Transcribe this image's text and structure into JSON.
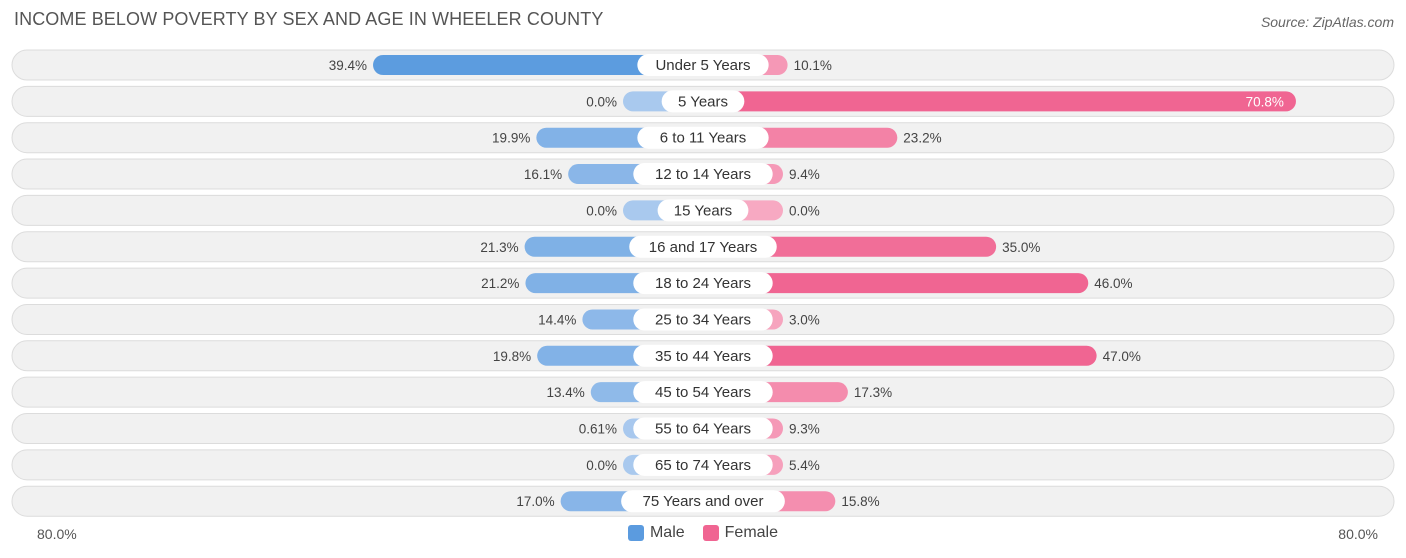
{
  "header": {
    "title": "INCOME BELOW POVERTY BY SEX AND AGE IN WHEELER COUNTY",
    "source": "Source: ZipAtlas.com"
  },
  "colors": {
    "male_dark": "#5b9bdf",
    "male_light": "#a9c9ee",
    "female_dark": "#f06592",
    "female_light": "#f7a9c2",
    "row_bg": "#f1f1f1",
    "row_border": "#dcdcdc"
  },
  "chart_data": {
    "type": "bar",
    "orientation": "horizontal-diverging",
    "title": "INCOME BELOW POVERTY BY SEX AND AGE IN WHEELER COUNTY",
    "categories": [
      "Under 5 Years",
      "5 Years",
      "6 to 11 Years",
      "12 to 14 Years",
      "15 Years",
      "16 and 17 Years",
      "18 to 24 Years",
      "25 to 34 Years",
      "35 to 44 Years",
      "45 to 54 Years",
      "55 to 64 Years",
      "65 to 74 Years",
      "75 Years and over"
    ],
    "series": [
      {
        "name": "Male",
        "values": [
          39.4,
          0.0,
          19.9,
          16.1,
          0.0,
          21.3,
          21.2,
          14.4,
          19.8,
          13.4,
          0.61,
          0.0,
          17.0
        ],
        "labels": [
          "39.4%",
          "0.0%",
          "19.9%",
          "16.1%",
          "0.0%",
          "21.3%",
          "21.2%",
          "14.4%",
          "19.8%",
          "13.4%",
          "0.61%",
          "0.0%",
          "17.0%"
        ]
      },
      {
        "name": "Female",
        "values": [
          10.1,
          70.8,
          23.2,
          9.4,
          0.0,
          35.0,
          46.0,
          3.0,
          47.0,
          17.3,
          9.3,
          5.4,
          15.8
        ],
        "labels": [
          "10.1%",
          "70.8%",
          "23.2%",
          "9.4%",
          "0.0%",
          "35.0%",
          "46.0%",
          "3.0%",
          "47.0%",
          "17.3%",
          "9.3%",
          "5.4%",
          "15.8%"
        ]
      }
    ],
    "xlim": [
      -80,
      80
    ],
    "axis_left_label": "80.0%",
    "axis_right_label": "80.0%",
    "legend_position": "bottom-center"
  },
  "legend": {
    "male": "Male",
    "female": "Female"
  }
}
